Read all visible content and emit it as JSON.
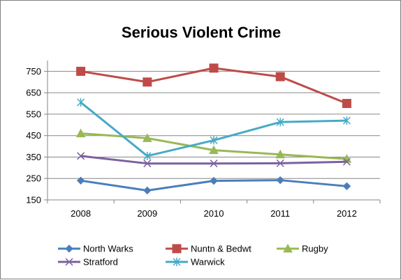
{
  "chart_data": {
    "type": "line",
    "title": "Serious Violent Crime",
    "xlabel": "",
    "ylabel": "",
    "categories": [
      "2008",
      "2009",
      "2010",
      "2011",
      "2012"
    ],
    "yticks": [
      "150",
      "250",
      "350",
      "450",
      "550",
      "650",
      "750"
    ],
    "ylim": [
      150,
      800
    ],
    "grid": true,
    "legend": "bottom",
    "series": [
      {
        "name": "North Warks",
        "values": [
          240,
          194,
          239,
          242,
          214
        ],
        "color": "#4a7ebb",
        "marker": "diamond"
      },
      {
        "name": "Nuntn & Bedwt",
        "values": [
          750,
          700,
          765,
          725,
          600
        ],
        "color": "#be4b48",
        "marker": "square"
      },
      {
        "name": "Rugby",
        "values": [
          460,
          438,
          382,
          362,
          341
        ],
        "color": "#98b954",
        "marker": "triangle"
      },
      {
        "name": "Stratford",
        "values": [
          355,
          320,
          320,
          321,
          328
        ],
        "color": "#7d60a0",
        "marker": "x"
      },
      {
        "name": "Warwick",
        "values": [
          605,
          355,
          428,
          513,
          520
        ],
        "color": "#46aac5",
        "marker": "star"
      }
    ]
  }
}
